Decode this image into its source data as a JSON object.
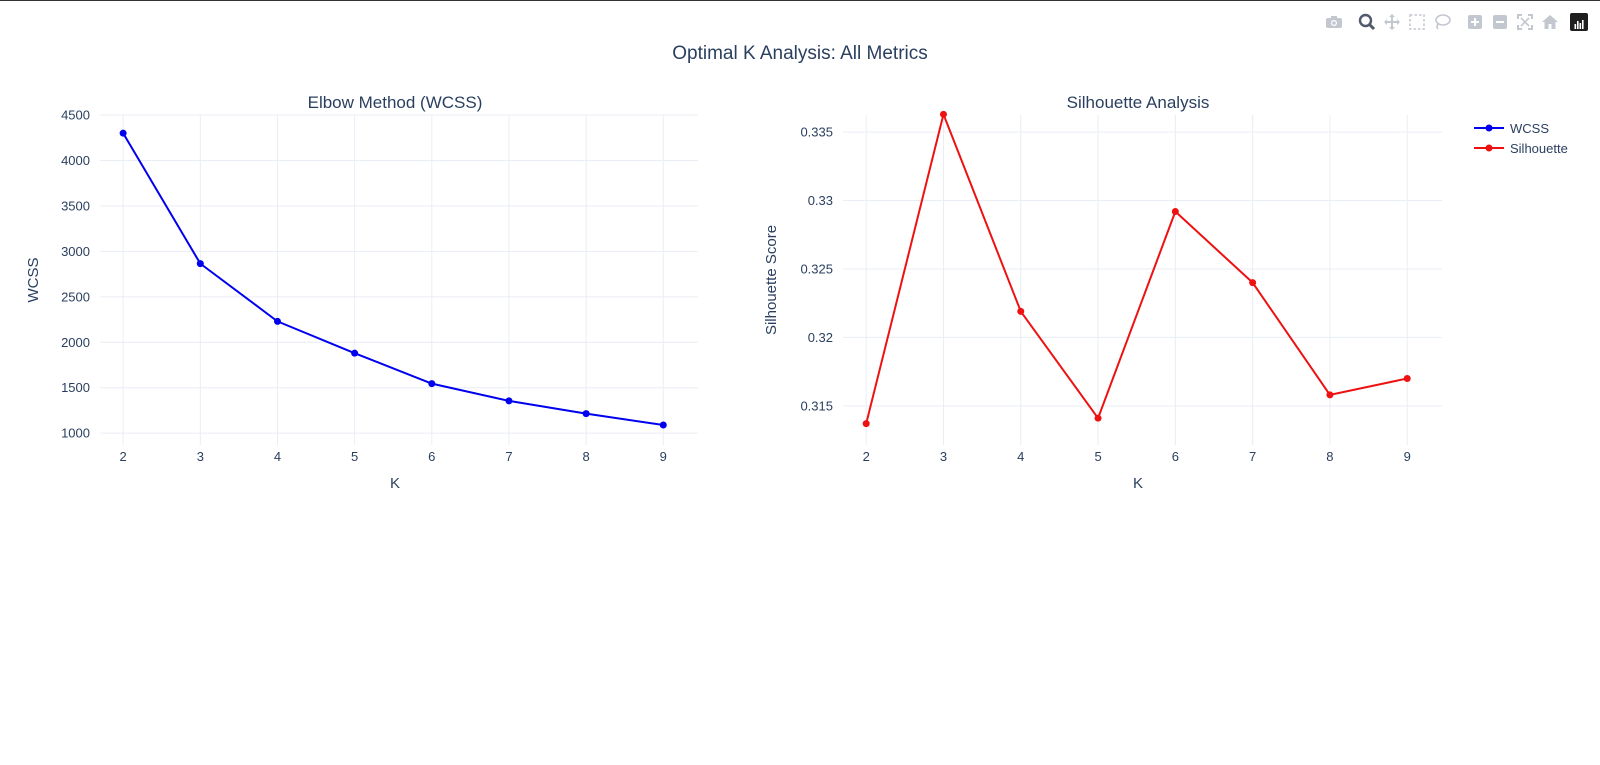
{
  "figure_title": "Optimal K Analysis: All Metrics",
  "modebar": {
    "buttons": [
      "camera-icon",
      "zoom-icon",
      "pan-icon",
      "box-select-icon",
      "lasso-icon",
      "zoom-in-icon",
      "zoom-out-icon",
      "autoscale-icon",
      "home-icon",
      "plotly-logo-icon"
    ]
  },
  "colors": {
    "wcss": "#0000ee",
    "silhouette": "#ee1111",
    "grid": "#e9eef4",
    "text": "#2a3f5f"
  },
  "chart_data": [
    {
      "type": "line",
      "title": "Elbow Method (WCSS)",
      "xlabel": "K",
      "ylabel": "WCSS",
      "x": [
        2,
        3,
        4,
        5,
        6,
        7,
        8,
        9
      ],
      "series": [
        {
          "name": "WCSS",
          "color": "#0000ee",
          "values": [
            4300,
            2865,
            2230,
            1880,
            1545,
            1355,
            1215,
            1090
          ]
        }
      ],
      "xlim": [
        1.7,
        9.45
      ],
      "ylim": [
        870,
        4500
      ],
      "xticks": [
        2,
        3,
        4,
        5,
        6,
        7,
        8,
        9
      ],
      "yticks": [
        1000,
        1500,
        2000,
        2500,
        3000,
        3500,
        4000,
        4500
      ],
      "ytick_labels": [
        "1000",
        "1500",
        "2000",
        "2500",
        "3000",
        "3500",
        "4000",
        "4500"
      ],
      "grid": true
    },
    {
      "type": "line",
      "title": "Silhouette Analysis",
      "xlabel": "K",
      "ylabel": "Silhouette Score",
      "x": [
        2,
        3,
        4,
        5,
        6,
        7,
        8,
        9
      ],
      "series": [
        {
          "name": "Silhouette",
          "color": "#ee1111",
          "values": [
            0.3137,
            0.3363,
            0.3219,
            0.3141,
            0.3292,
            0.324,
            0.3158,
            0.317
          ]
        }
      ],
      "xlim": [
        1.7,
        9.45
      ],
      "ylim": [
        0.31214,
        0.33625
      ],
      "xticks": [
        2,
        3,
        4,
        5,
        6,
        7,
        8,
        9
      ],
      "yticks": [
        0.315,
        0.32,
        0.325,
        0.33,
        0.335
      ],
      "ytick_labels": [
        "0.315",
        "0.32",
        "0.325",
        "0.33",
        "0.335"
      ],
      "grid": true
    }
  ],
  "legend": {
    "placement": "top-right",
    "items": [
      {
        "label": "WCSS",
        "color": "#0000ee"
      },
      {
        "label": "Silhouette",
        "color": "#ee1111"
      }
    ]
  }
}
